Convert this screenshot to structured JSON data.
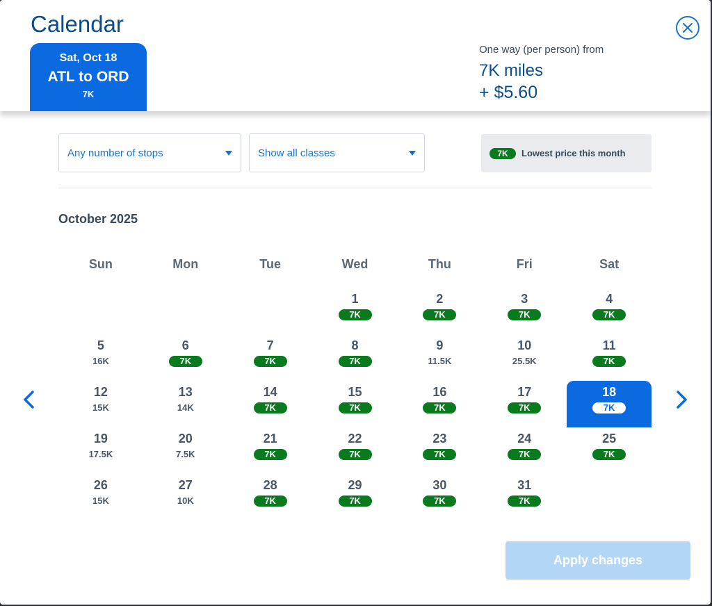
{
  "header": {
    "title": "Calendar",
    "close_icon": "close-icon"
  },
  "trip": {
    "date": "Sat, Oct 18",
    "route": "ATL to ORD",
    "price": "7K"
  },
  "fare": {
    "label": "One way (per person) from",
    "miles": "7K miles",
    "tax": "+ $5.60"
  },
  "filters": {
    "stops": "Any number of stops",
    "classes": "Show all classes"
  },
  "legend": {
    "pill": "7K",
    "text": "Lowest price this month"
  },
  "month": "October 2025",
  "weekdays": [
    "Sun",
    "Mon",
    "Tue",
    "Wed",
    "Thu",
    "Fri",
    "Sat"
  ],
  "leading_empty": 3,
  "days": [
    {
      "n": "1",
      "p": "7K",
      "low": true
    },
    {
      "n": "2",
      "p": "7K",
      "low": true
    },
    {
      "n": "3",
      "p": "7K",
      "low": true
    },
    {
      "n": "4",
      "p": "7K",
      "low": true
    },
    {
      "n": "5",
      "p": "16K",
      "low": false
    },
    {
      "n": "6",
      "p": "7K",
      "low": true
    },
    {
      "n": "7",
      "p": "7K",
      "low": true
    },
    {
      "n": "8",
      "p": "7K",
      "low": true
    },
    {
      "n": "9",
      "p": "11.5K",
      "low": false
    },
    {
      "n": "10",
      "p": "25.5K",
      "low": false
    },
    {
      "n": "11",
      "p": "7K",
      "low": true
    },
    {
      "n": "12",
      "p": "15K",
      "low": false
    },
    {
      "n": "13",
      "p": "14K",
      "low": false
    },
    {
      "n": "14",
      "p": "7K",
      "low": true
    },
    {
      "n": "15",
      "p": "7K",
      "low": true
    },
    {
      "n": "16",
      "p": "7K",
      "low": true
    },
    {
      "n": "17",
      "p": "7K",
      "low": true
    },
    {
      "n": "18",
      "p": "7K",
      "low": true,
      "selected": true
    },
    {
      "n": "19",
      "p": "17.5K",
      "low": false
    },
    {
      "n": "20",
      "p": "7.5K",
      "low": false
    },
    {
      "n": "21",
      "p": "7K",
      "low": true
    },
    {
      "n": "22",
      "p": "7K",
      "low": true
    },
    {
      "n": "23",
      "p": "7K",
      "low": true
    },
    {
      "n": "24",
      "p": "7K",
      "low": true
    },
    {
      "n": "25",
      "p": "7K",
      "low": true
    },
    {
      "n": "26",
      "p": "15K",
      "low": false
    },
    {
      "n": "27",
      "p": "10K",
      "low": false
    },
    {
      "n": "28",
      "p": "7K",
      "low": true
    },
    {
      "n": "29",
      "p": "7K",
      "low": true
    },
    {
      "n": "30",
      "p": "7K",
      "low": true
    },
    {
      "n": "31",
      "p": "7K",
      "low": true
    }
  ],
  "apply_label": "Apply changes",
  "colors": {
    "accent": "#0b6ae0",
    "low_price": "#0a7a1f",
    "title": "#0b4d8b",
    "apply_disabled": "#b3d6f7"
  }
}
